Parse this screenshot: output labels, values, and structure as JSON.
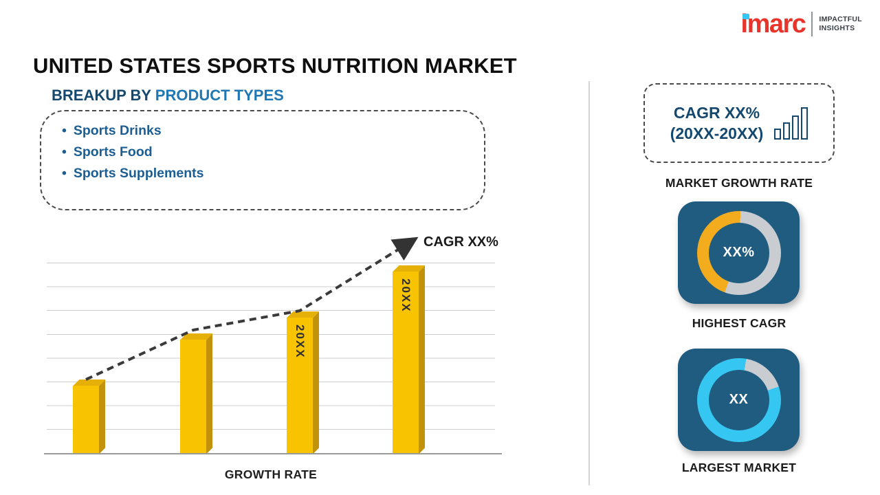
{
  "page": {
    "title": "UNITED STATES SPORTS NUTRITION MARKET"
  },
  "logo": {
    "brand": "imarc",
    "tagline_line1": "IMPACTFUL",
    "tagline_line2": "INSIGHTS"
  },
  "breakup": {
    "heading_prefix": "BREAKUP BY",
    "heading_accent": "PRODUCT TYPES",
    "items": [
      "Sports Drinks",
      "Sports Food",
      "Sports Supplements"
    ]
  },
  "chart_data": {
    "type": "bar",
    "title": "GROWTH RATE",
    "categories": [
      "",
      "",
      "20XX",
      "20XX"
    ],
    "values": [
      25,
      42,
      50,
      67
    ],
    "bar_labels": [
      "",
      "",
      "20XX",
      "20XX"
    ],
    "xlabel": "GROWTH RATE",
    "ylabel": "",
    "ylim": [
      0,
      100
    ],
    "y_axis_labels_visible": false,
    "gridlines": true,
    "trend_line": {
      "style": "dashed-arrow-up",
      "label": "CAGR XX%"
    },
    "bar_color": "#F8C301",
    "bar_side_color": "#C2930A",
    "bar_top_color": "#E5B007"
  },
  "right_panel": {
    "growth_card": {
      "line1": "CAGR XX%",
      "line2": "(20XX-20XX)",
      "caption": "MARKET GROWTH RATE"
    },
    "highest_cagr": {
      "value": "XX%",
      "caption": "HIGHEST CAGR",
      "donut": {
        "start_deg": 200,
        "segments": [
          {
            "color": "#F2AC1E",
            "pct": 45
          },
          {
            "color": "#C9CDD2",
            "pct": 55
          }
        ]
      }
    },
    "largest_market": {
      "value": "XX",
      "caption": "LARGEST MARKET",
      "donut": {
        "start_deg": 10,
        "segments": [
          {
            "color": "#C9CDD2",
            "pct": 17
          },
          {
            "color": "#35C7F2",
            "pct": 83
          }
        ]
      }
    }
  },
  "colors": {
    "navy_card": "#1F5C80",
    "heading_dark": "#14486E",
    "heading_accent": "#1F78B4",
    "list_blue": "#1B5E94",
    "brand_red": "#E8342B",
    "brand_cyan": "#35C7F2"
  }
}
